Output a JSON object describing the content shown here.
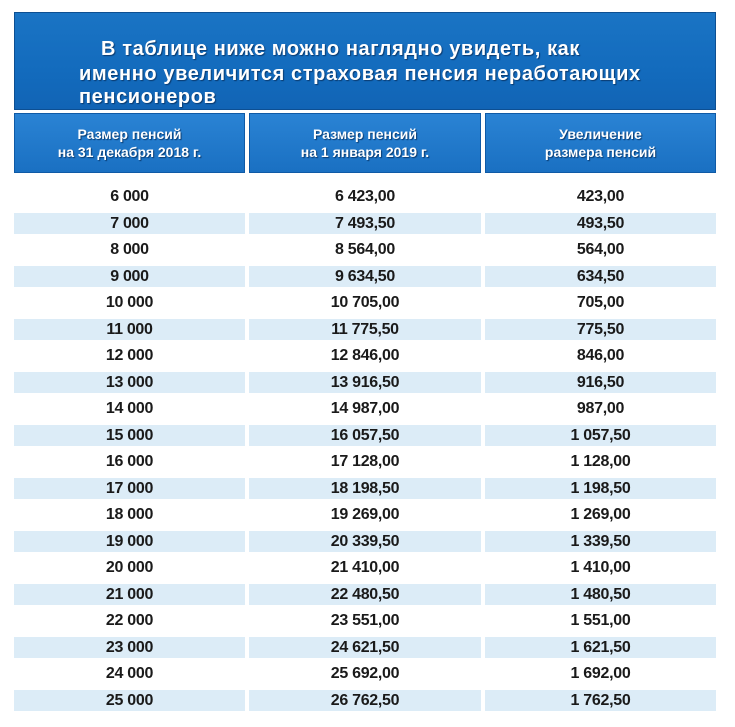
{
  "title": {
    "line1": "В таблице ниже можно наглядно увидеть, как",
    "line2": "именно  увеличится страховая пенсия неработающих",
    "line3": "пенсионеров"
  },
  "headers": {
    "col1": [
      "Размер пенсий",
      "на 31 декабря 2018 г."
    ],
    "col2": [
      "Размер пенсий",
      "на 1 января 2019 г."
    ],
    "col3": [
      "Увеличение",
      "размера пенсий"
    ]
  },
  "rows": [
    [
      "6 000",
      "6 423,00",
      "423,00"
    ],
    [
      "7 000",
      "7 493,50",
      "493,50"
    ],
    [
      "8 000",
      "8 564,00",
      "564,00"
    ],
    [
      "9 000",
      "9 634,50",
      "634,50"
    ],
    [
      "10 000",
      "10 705,00",
      "705,00"
    ],
    [
      "11 000",
      "11 775,50",
      "775,50"
    ],
    [
      "12 000",
      "12 846,00",
      "846,00"
    ],
    [
      "13 000",
      "13 916,50",
      "916,50"
    ],
    [
      "14 000",
      "14 987,00",
      "987,00"
    ],
    [
      "15 000",
      "16 057,50",
      "1 057,50"
    ],
    [
      "16 000",
      "17 128,00",
      "1 128,00"
    ],
    [
      "17 000",
      "18 198,50",
      "1 198,50"
    ],
    [
      "18 000",
      "19 269,00",
      "1 269,00"
    ],
    [
      "19 000",
      "20 339,50",
      "1 339,50"
    ],
    [
      "20 000",
      "21 410,00",
      "1 410,00"
    ],
    [
      "21 000",
      "22 480,50",
      "1 480,50"
    ],
    [
      "22 000",
      "23 551,00",
      "1 551,00"
    ],
    [
      "23 000",
      "24 621,50",
      "1 621,50"
    ],
    [
      "24 000",
      "25 692,00",
      "1 692,00"
    ],
    [
      "25 000",
      "26 762,50",
      "1 762,50"
    ]
  ],
  "colors": {
    "banner": "#1a74c4",
    "header": "#2a83d4",
    "row_stripe": "#dcecf7"
  }
}
